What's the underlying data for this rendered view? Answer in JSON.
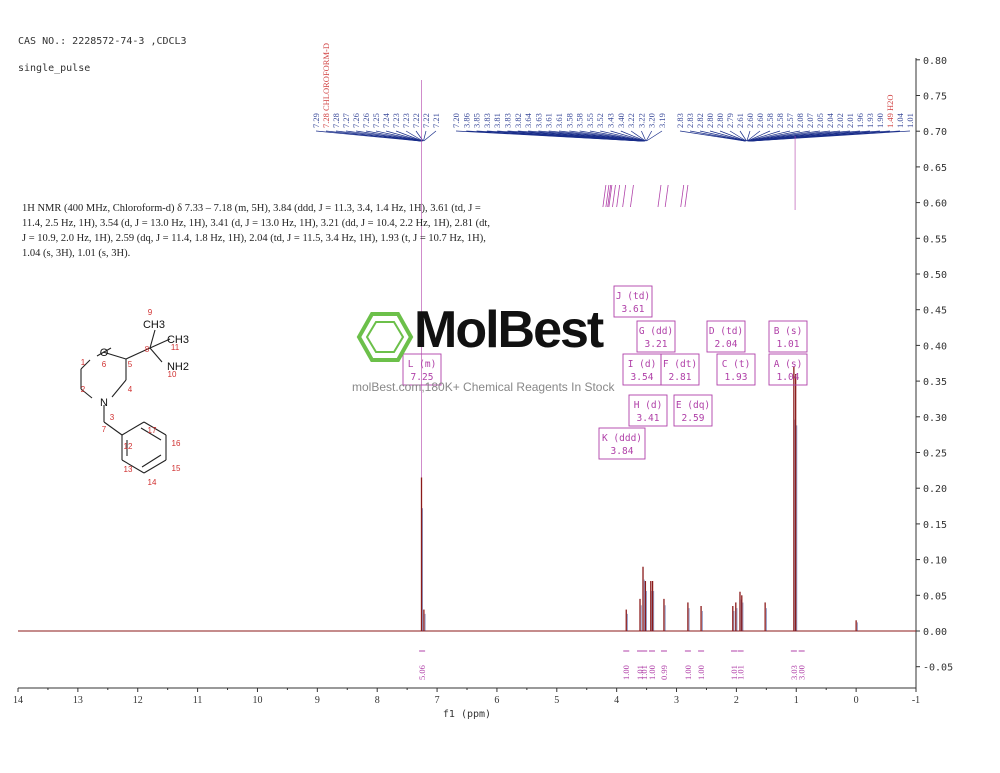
{
  "header": {
    "cas_line": "CAS NO.: 2228572-74-3 ,CDCL3",
    "pulse": "single_pulse"
  },
  "description_text": "1H NMR (400 MHz, Chloroform-d) δ 7.33 – 7.18 (m, 5H), 3.84 (ddd, J = 11.3, 3.4, 1.4 Hz, 1H), 3.61 (td, J = 11.4, 2.5 Hz, 1H), 3.54 (d, J = 13.0 Hz, 1H), 3.41 (d, J = 13.0 Hz, 1H), 3.21 (dd, J = 10.4, 2.2 Hz, 1H), 2.81 (dt, J = 10.9, 2.0 Hz, 1H), 2.59 (dq, J = 11.4, 1.8 Hz, 1H), 2.04 (td, J = 11.5, 3.4 Hz, 1H), 1.93 (t, J = 10.7 Hz, 1H), 1.04 (s, 3H), 1.01 (s, 3H).",
  "watermark": {
    "brand": "MolBest",
    "tagline": "molBest.com,180K+ Chemical Reagents In Stock"
  },
  "colors": {
    "spectrum": "#8b1a1a",
    "label": "#b040a8",
    "peaklist": "#1a2e8a",
    "axis": "#333333",
    "logo_green": "#6cc04a"
  },
  "chart_data": {
    "type": "line",
    "xlabel": "f1 (ppm)",
    "ylabel": "",
    "xlim": [
      14,
      -1
    ],
    "ylim": [
      -0.05,
      0.8
    ],
    "x_ticks": [
      "14",
      "13",
      "12",
      "11",
      "10",
      "9",
      "8",
      "7",
      "6",
      "5",
      "4",
      "3",
      "2",
      "1",
      "0",
      "-1"
    ],
    "y_ticks": [
      "-0.05",
      "0.00",
      "0.05",
      "0.10",
      "0.15",
      "0.20",
      "0.25",
      "0.30",
      "0.35",
      "0.40",
      "0.45",
      "0.50",
      "0.55",
      "0.60",
      "0.65",
      "0.70",
      "0.75",
      "0.80"
    ],
    "peaks": [
      {
        "ppm": 7.26,
        "height": 0.215
      },
      {
        "ppm": 7.22,
        "height": 0.03
      },
      {
        "ppm": 3.84,
        "height": 0.03
      },
      {
        "ppm": 3.61,
        "height": 0.045
      },
      {
        "ppm": 3.56,
        "height": 0.09
      },
      {
        "ppm": 3.52,
        "height": 0.07
      },
      {
        "ppm": 3.43,
        "height": 0.07
      },
      {
        "ppm": 3.4,
        "height": 0.07
      },
      {
        "ppm": 3.21,
        "height": 0.045
      },
      {
        "ppm": 2.81,
        "height": 0.04
      },
      {
        "ppm": 2.59,
        "height": 0.035
      },
      {
        "ppm": 2.06,
        "height": 0.035
      },
      {
        "ppm": 2.01,
        "height": 0.04
      },
      {
        "ppm": 1.94,
        "height": 0.055
      },
      {
        "ppm": 1.91,
        "height": 0.05
      },
      {
        "ppm": 1.52,
        "height": 0.04
      },
      {
        "ppm": 1.04,
        "height": 0.37
      },
      {
        "ppm": 1.01,
        "height": 0.36
      },
      {
        "ppm": 0.0,
        "height": 0.015
      }
    ],
    "peak_list_left": [
      "7.29",
      "7.28 CHLOROFORM-D",
      "7.28",
      "7.27",
      "7.26",
      "7.26",
      "7.25",
      "7.24",
      "7.23",
      "7.23",
      "7.22",
      "7.22",
      "7.21"
    ],
    "peak_list_mid": [
      "7.20",
      "3.86",
      "3.85",
      "3.83",
      "3.81",
      "3.83",
      "3.82",
      "3.64",
      "3.63",
      "3.61",
      "3.61",
      "3.58",
      "3.58",
      "3.55",
      "3.52",
      "3.43",
      "3.40",
      "3.22",
      "3.22",
      "3.20",
      "3.19"
    ],
    "peak_list_right": [
      "2.83",
      "2.83",
      "2.82",
      "2.80",
      "2.80",
      "2.79",
      "2.61",
      "2.60",
      "2.60",
      "2.58",
      "2.58",
      "2.57",
      "2.08",
      "2.07",
      "2.05",
      "2.04",
      "2.02",
      "2.01",
      "1.96",
      "1.93",
      "1.90",
      "1.49 H2O",
      "1.04",
      "1.01"
    ],
    "multiplets": [
      {
        "id": "L (m)",
        "shift": "7.25"
      },
      {
        "id": "J (td)",
        "shift": "3.61"
      },
      {
        "id": "G (dd)",
        "shift": "3.21"
      },
      {
        "id": "D (td)",
        "shift": "2.04"
      },
      {
        "id": "B (s)",
        "shift": "1.01"
      },
      {
        "id": "I (d)",
        "shift": "3.54"
      },
      {
        "id": "F (dt)",
        "shift": "2.81"
      },
      {
        "id": "C (t)",
        "shift": "1.93"
      },
      {
        "id": "A (s)",
        "shift": "1.04"
      },
      {
        "id": "H (d)",
        "shift": "3.41"
      },
      {
        "id": "E (dq)",
        "shift": "2.59"
      },
      {
        "id": "K (ddd)",
        "shift": "3.84"
      }
    ],
    "integrals": [
      {
        "ppm": 7.25,
        "value": "5.06"
      },
      {
        "ppm": 3.84,
        "value": "1.00"
      },
      {
        "ppm": 3.61,
        "value": "1.01"
      },
      {
        "ppm": 3.54,
        "value": "1.01"
      },
      {
        "ppm": 3.41,
        "value": "1.00"
      },
      {
        "ppm": 3.21,
        "value": "0.99"
      },
      {
        "ppm": 2.81,
        "value": "1.00"
      },
      {
        "ppm": 2.59,
        "value": "1.00"
      },
      {
        "ppm": 2.04,
        "value": "1.01"
      },
      {
        "ppm": 1.93,
        "value": "1.01"
      },
      {
        "ppm": 1.04,
        "value": "3.03"
      },
      {
        "ppm": 1.01,
        "value": "3.00"
      }
    ]
  },
  "molecule": {
    "atoms": [
      {
        "label": "O",
        "number": "6"
      },
      {
        "label": "N",
        "number": "3"
      },
      {
        "label": "CH3",
        "number": "9"
      },
      {
        "label": "CH3",
        "number": "11"
      },
      {
        "label": "NH2",
        "number": "10"
      }
    ],
    "carbon_numbers": [
      "1",
      "2",
      "4",
      "5",
      "7",
      "8",
      "12",
      "13",
      "14",
      "15",
      "16",
      "17"
    ]
  }
}
